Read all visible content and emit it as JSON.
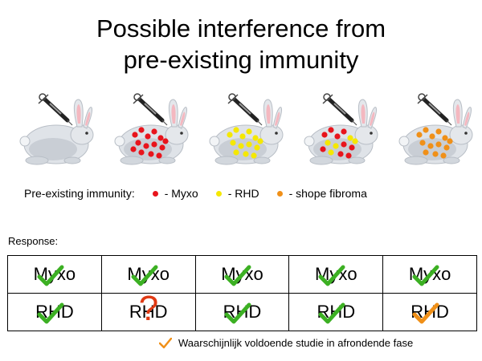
{
  "title": {
    "line1": "Possible interference from",
    "line2": "pre-existing immunity"
  },
  "rabbits": [
    {
      "dots": []
    },
    {
      "dots": [
        "red",
        "red",
        "red",
        "red",
        "red",
        "red",
        "red",
        "red",
        "red",
        "red",
        "red",
        "red",
        "red",
        "red"
      ]
    },
    {
      "dots": [
        "yellow",
        "yellow",
        "yellow",
        "yellow",
        "yellow",
        "yellow",
        "yellow",
        "yellow",
        "yellow",
        "yellow",
        "yellow",
        "yellow",
        "yellow"
      ]
    },
    {
      "dots": [
        "red",
        "red",
        "red",
        "red",
        "yellow",
        "yellow",
        "yellow",
        "red",
        "red",
        "yellow",
        "red",
        "red",
        "yellow",
        "red"
      ]
    },
    {
      "dots": [
        "orange",
        "orange",
        "orange",
        "orange",
        "orange",
        "orange",
        "orange",
        "orange",
        "orange",
        "orange",
        "orange",
        "orange",
        "orange"
      ]
    }
  ],
  "legend": {
    "label": "Pre-existing immunity:",
    "items": [
      {
        "label": "- Myxo",
        "color": "#e8141c"
      },
      {
        "label": "- RHD",
        "color": "#f5e800"
      },
      {
        "label": "- shope fibroma",
        "color": "#f09018"
      }
    ]
  },
  "response": {
    "label": "Response:",
    "rows": [
      [
        {
          "text": "Myxo",
          "mark": "check"
        },
        {
          "text": "Myxo",
          "mark": "check"
        },
        {
          "text": "Myxo",
          "mark": "check"
        },
        {
          "text": "Myxo",
          "mark": "check"
        },
        {
          "text": "Myxo",
          "mark": "check"
        }
      ],
      [
        {
          "text": "RHD",
          "mark": "check"
        },
        {
          "text": "RHD",
          "mark": "question"
        },
        {
          "text": "RHD",
          "mark": "check"
        },
        {
          "text": "RHD",
          "mark": "check"
        },
        {
          "text": "RHD",
          "mark": "orange-check"
        }
      ]
    ]
  },
  "colors": {
    "check": "#3cb023",
    "orange_check": "#f09018",
    "question": "#e03a14",
    "dot_red": "#e8141c",
    "dot_yellow": "#f5e800",
    "dot_orange": "#f09018"
  },
  "footnote": {
    "text": "Waarschijnlijk voldoende studie in afrondende fase"
  }
}
